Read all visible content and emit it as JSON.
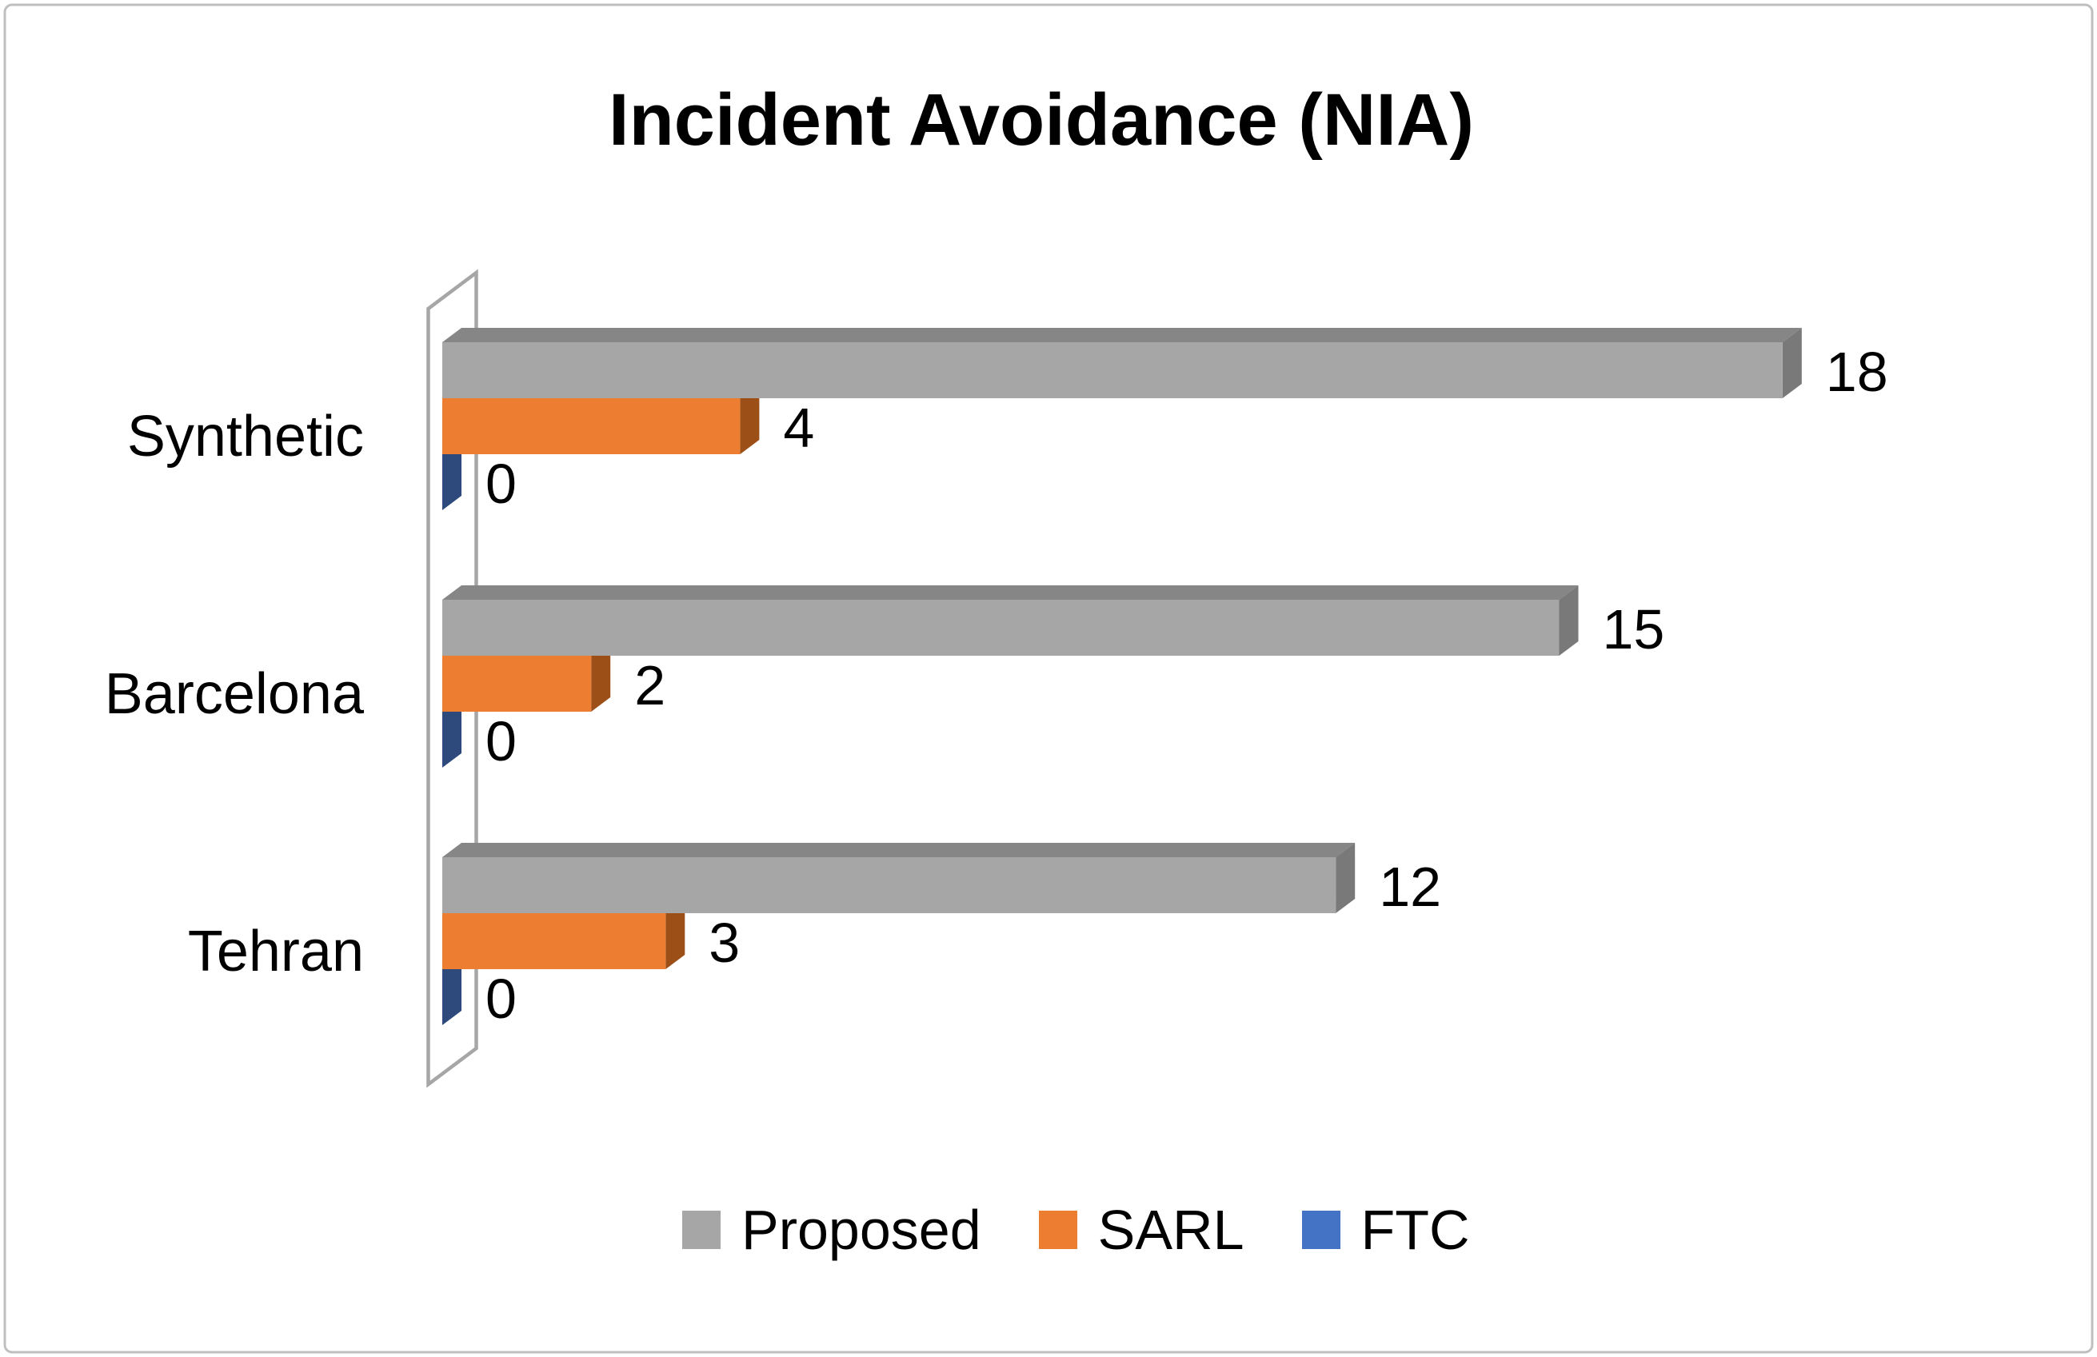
{
  "title": "Incident Avoidance (NIA)",
  "background_color": "#ffffff",
  "border_color": "#bfbfbf",
  "chart_data": {
    "type": "bar",
    "orientation": "horizontal",
    "style": "3d-excel",
    "title": "Incident Avoidance (NIA)",
    "categories": [
      "Synthetic",
      "Barcelona",
      "Tehran"
    ],
    "series": [
      {
        "name": "Proposed",
        "values": [
          18,
          15,
          12
        ],
        "color": "#a6a6a6",
        "color_top": "#868686",
        "color_side": "#797979"
      },
      {
        "name": "SARL",
        "values": [
          4,
          2,
          3
        ],
        "color": "#ed7d31",
        "color_top": "#c2661e",
        "color_side": "#9c4f17"
      },
      {
        "name": "FTC",
        "values": [
          0,
          0,
          0
        ],
        "color": "#4472c4",
        "color_top": "#325089",
        "color_side": "#2e4a7c"
      }
    ],
    "data_labels": [
      [
        "18",
        "15",
        "12"
      ],
      [
        "4",
        "2",
        "3"
      ],
      [
        "0",
        "0",
        "0"
      ]
    ],
    "xlim": [
      0,
      18
    ],
    "grid": false,
    "axis_color": "#a6a6a6",
    "label_color": "#000000",
    "legend_position": "bottom"
  },
  "legend": {
    "items": [
      {
        "label": "Proposed",
        "color": "#a6a6a6"
      },
      {
        "label": "SARL",
        "color": "#ed7d31"
      },
      {
        "label": "FTC",
        "color": "#4472c4"
      }
    ]
  }
}
